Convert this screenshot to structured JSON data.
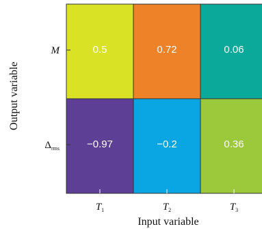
{
  "chart_data": {
    "type": "heatmap",
    "title": "",
    "xlabel": "Input variable",
    "ylabel": "Output variable",
    "x_categories": [
      {
        "main": "T",
        "sub": "1"
      },
      {
        "main": "T",
        "sub": "2"
      },
      {
        "main": "T",
        "sub": "3"
      }
    ],
    "y_categories": [
      {
        "main": "M",
        "sub": ""
      },
      {
        "main": "Δ",
        "sub": "rms"
      }
    ],
    "values": [
      [
        "0.5",
        "0.72",
        "0.06"
      ],
      [
        "−0.97",
        "−0.2",
        "0.36"
      ]
    ],
    "cell_colors": [
      [
        "#dae226",
        "#ee8228",
        "#0aa99a"
      ],
      [
        "#5d3f95",
        "#0aa6e4",
        "#9cc93b"
      ]
    ],
    "grid_color": "#333333"
  }
}
